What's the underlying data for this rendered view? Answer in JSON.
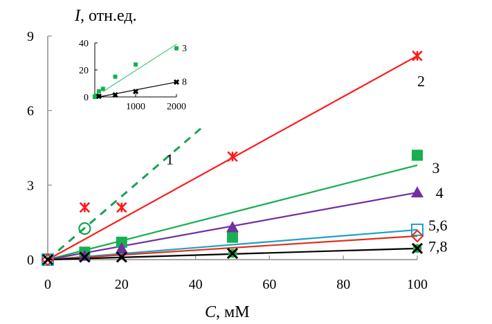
{
  "chart_data": [
    {
      "type": "scatter",
      "title": "",
      "xlabel_italic": "C",
      "xlabel_rest": ", мМ",
      "ylabel_italic": "I",
      "ylabel_rest": ", отн.ед.",
      "xlim": [
        0,
        100
      ],
      "ylim": [
        0,
        9
      ],
      "xticks": [
        0,
        20,
        40,
        60,
        80,
        100
      ],
      "yticks": [
        0,
        3,
        6,
        9
      ],
      "grid": false,
      "series": [
        {
          "name": "1",
          "label": "1",
          "marker": "open-circle",
          "color": "#16a452",
          "line": "dashed",
          "x": [
            0,
            10
          ],
          "y": [
            0,
            1.25
          ],
          "fit": [
            [
              0,
              0
            ],
            [
              42,
              5.35
            ]
          ]
        },
        {
          "name": "2",
          "label": "2",
          "marker": "asterisk",
          "color": "#ff1a1a",
          "line": "solid",
          "x": [
            0,
            10,
            20,
            50,
            100
          ],
          "y": [
            0,
            2.1,
            2.1,
            4.15,
            8.2
          ],
          "fit": [
            [
              0,
              0
            ],
            [
              100,
              8.2
            ]
          ]
        },
        {
          "name": "3",
          "label": "3",
          "marker": "square",
          "color": "#16b050",
          "line": "solid",
          "x": [
            0,
            10,
            20,
            50,
            100
          ],
          "y": [
            0,
            0.3,
            0.7,
            0.9,
            4.2
          ],
          "fit": [
            [
              0,
              0
            ],
            [
              100,
              3.8
            ]
          ]
        },
        {
          "name": "4",
          "label": "4",
          "marker": "triangle",
          "color": "#7030a0",
          "line": "solid",
          "x": [
            0,
            10,
            20,
            50,
            100
          ],
          "y": [
            0,
            0.15,
            0.45,
            1.3,
            2.7
          ],
          "fit": [
            [
              0,
              0
            ],
            [
              100,
              2.7
            ]
          ]
        },
        {
          "name": "5",
          "label": "5,6",
          "marker": "open-square",
          "color": "#1fa0c8",
          "line": "solid",
          "x": [
            0,
            100
          ],
          "y": [
            0,
            1.2
          ],
          "fit": [
            [
              0,
              0
            ],
            [
              100,
              1.2
            ]
          ]
        },
        {
          "name": "6",
          "label": "",
          "marker": "open-diamond",
          "color": "#e0301e",
          "line": "solid",
          "x": [
            0,
            100
          ],
          "y": [
            0,
            0.95
          ],
          "fit": [
            [
              0,
              0
            ],
            [
              100,
              0.95
            ]
          ]
        },
        {
          "name": "7",
          "label": "7,8",
          "marker": "x",
          "color": "#000000",
          "line": "solid",
          "x": [
            0,
            10,
            20,
            50,
            100
          ],
          "y": [
            0,
            0.1,
            0.1,
            0.25,
            0.45
          ],
          "fit": [
            [
              0,
              0
            ],
            [
              100,
              0.45
            ]
          ]
        },
        {
          "name": "8",
          "label": "",
          "marker": "dot",
          "color": "#22b04a",
          "line": "none",
          "x": [
            50,
            100
          ],
          "y": [
            0.25,
            0.45
          ],
          "fit": []
        }
      ],
      "annotations": [
        {
          "text": "1",
          "x": 32,
          "y": 4.05
        },
        {
          "text": "2",
          "x": 100,
          "y": 7.2
        },
        {
          "text": "3",
          "x": 104,
          "y": 3.7
        },
        {
          "text": "4",
          "x": 105,
          "y": 2.7
        },
        {
          "text": "5,6",
          "x": 103,
          "y": 1.4
        },
        {
          "text": "7,8",
          "x": 103,
          "y": 0.55
        }
      ]
    },
    {
      "type": "scatter",
      "role": "inset",
      "xlim": [
        0,
        2000
      ],
      "ylim": [
        0,
        40
      ],
      "xticks": [
        1000,
        2000
      ],
      "yticks": [
        0,
        20,
        40
      ],
      "series": [
        {
          "name": "3",
          "label": "3",
          "marker": "square",
          "color": "#16b050",
          "x": [
            0,
            10,
            20,
            50,
            100,
            200,
            500,
            1000,
            2000
          ],
          "y": [
            0,
            0.3,
            0.7,
            0.9,
            4.2,
            6,
            15,
            24,
            36
          ],
          "fit": [
            [
              200,
              4
            ],
            [
              2000,
              39
            ]
          ],
          "fit_color": "#3cc47a"
        },
        {
          "name": "8",
          "label": "8",
          "marker": "x",
          "color": "#000000",
          "x": [
            100,
            500,
            1000,
            2000
          ],
          "y": [
            0.45,
            1.5,
            4,
            11
          ],
          "fit": [
            [
              100,
              0
            ],
            [
              2000,
              11
            ]
          ],
          "fit_color": "#000000"
        }
      ]
    }
  ]
}
